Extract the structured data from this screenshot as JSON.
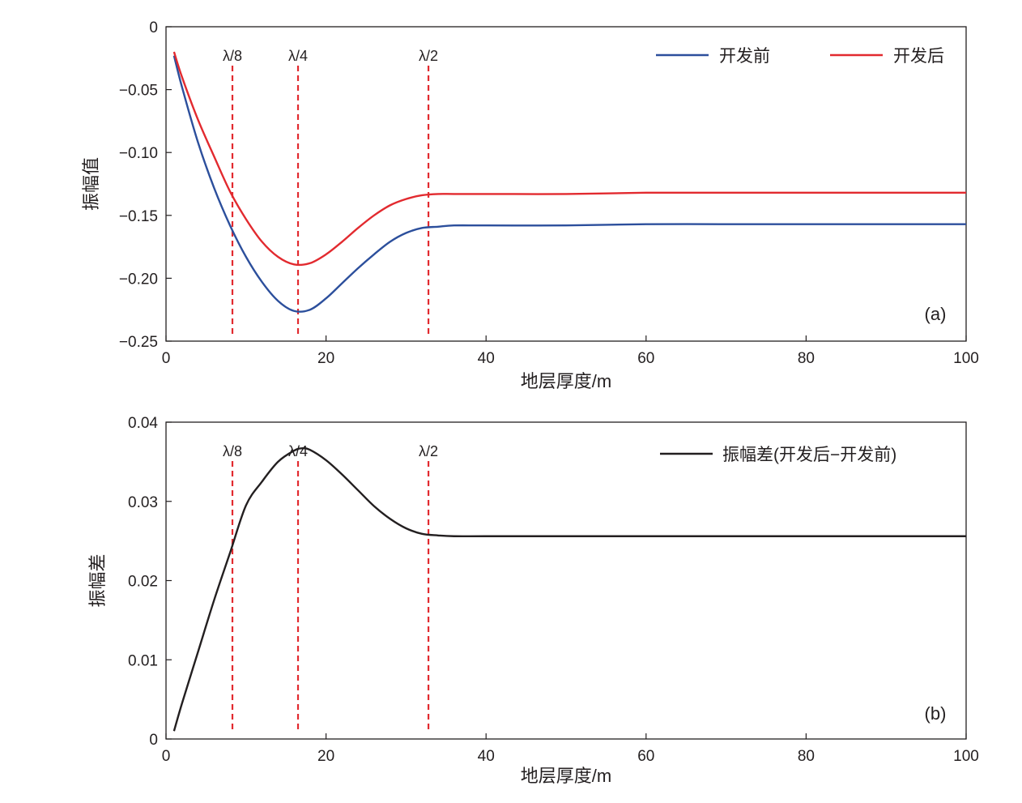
{
  "chart_data": [
    {
      "type": "line",
      "panel_label": "(a)",
      "xlabel": "地层厚度/m",
      "ylabel": "振幅值",
      "xlim": [
        0,
        100
      ],
      "ylim": [
        -0.25,
        0
      ],
      "xticks": [
        0,
        20,
        40,
        60,
        80,
        100
      ],
      "xtick_labels": [
        "0",
        "20",
        "40",
        "60",
        "80",
        "100"
      ],
      "yticks": [
        0,
        -0.05,
        -0.1,
        -0.15,
        -0.2,
        -0.25
      ],
      "ytick_labels": [
        "0",
        "−0.05",
        "−0.10",
        "−0.15",
        "−0.20",
        "−0.25"
      ],
      "grid": false,
      "legend_position": "top-right",
      "markers": [
        {
          "label": "λ/8",
          "x": 8.3
        },
        {
          "label": "λ/4",
          "x": 16.5
        },
        {
          "label": "λ/2",
          "x": 32.8
        }
      ],
      "x": [
        1,
        2,
        4,
        6,
        8,
        10,
        12,
        14,
        16,
        18,
        20,
        22,
        24,
        26,
        28,
        30,
        32,
        34,
        36,
        40,
        50,
        60,
        70,
        80,
        90,
        100
      ],
      "series": [
        {
          "name": "开发前",
          "color": "#2c4f9c",
          "values": [
            -0.023,
            -0.048,
            -0.092,
            -0.128,
            -0.158,
            -0.183,
            -0.203,
            -0.218,
            -0.226,
            -0.225,
            -0.216,
            -0.204,
            -0.192,
            -0.181,
            -0.171,
            -0.164,
            -0.16,
            -0.159,
            -0.158,
            -0.158,
            -0.158,
            -0.157,
            -0.157,
            -0.157,
            -0.157,
            -0.157
          ]
        },
        {
          "name": "开发后",
          "color": "#e22a2f",
          "values": [
            -0.02,
            -0.04,
            -0.074,
            -0.103,
            -0.131,
            -0.153,
            -0.171,
            -0.183,
            -0.189,
            -0.188,
            -0.181,
            -0.171,
            -0.16,
            -0.15,
            -0.142,
            -0.137,
            -0.134,
            -0.133,
            -0.133,
            -0.133,
            -0.133,
            -0.132,
            -0.132,
            -0.132,
            -0.132,
            -0.132
          ]
        }
      ]
    },
    {
      "type": "line",
      "panel_label": "(b)",
      "xlabel": "地层厚度/m",
      "ylabel": "振幅差",
      "xlim": [
        0,
        100
      ],
      "ylim": [
        0,
        0.04
      ],
      "xticks": [
        0,
        20,
        40,
        60,
        80,
        100
      ],
      "xtick_labels": [
        "0",
        "20",
        "40",
        "60",
        "80",
        "100"
      ],
      "yticks": [
        0,
        0.01,
        0.02,
        0.03,
        0.04
      ],
      "ytick_labels": [
        "0",
        "0.01",
        "0.02",
        "0.03",
        "0.04"
      ],
      "grid": false,
      "legend_position": "top-right",
      "markers": [
        {
          "label": "λ/8",
          "x": 8.3
        },
        {
          "label": "λ/4",
          "x": 16.5
        },
        {
          "label": "λ/2",
          "x": 32.8
        }
      ],
      "x": [
        1,
        2,
        4,
        6,
        8,
        10,
        12,
        14,
        16,
        17,
        18,
        20,
        22,
        24,
        26,
        28,
        30,
        32,
        34,
        36,
        40,
        50,
        60,
        70,
        80,
        90,
        100
      ],
      "series": [
        {
          "name": "振幅差(开发后−开发前)",
          "color": "#231f20",
          "values": [
            0.001,
            0.0045,
            0.011,
            0.0175,
            0.0235,
            0.0295,
            0.0325,
            0.035,
            0.0364,
            0.0367,
            0.0365,
            0.0352,
            0.0334,
            0.0314,
            0.0294,
            0.0278,
            0.0266,
            0.0259,
            0.0257,
            0.0256,
            0.0256,
            0.0256,
            0.0256,
            0.0256,
            0.0256,
            0.0256,
            0.0256
          ]
        }
      ]
    }
  ]
}
